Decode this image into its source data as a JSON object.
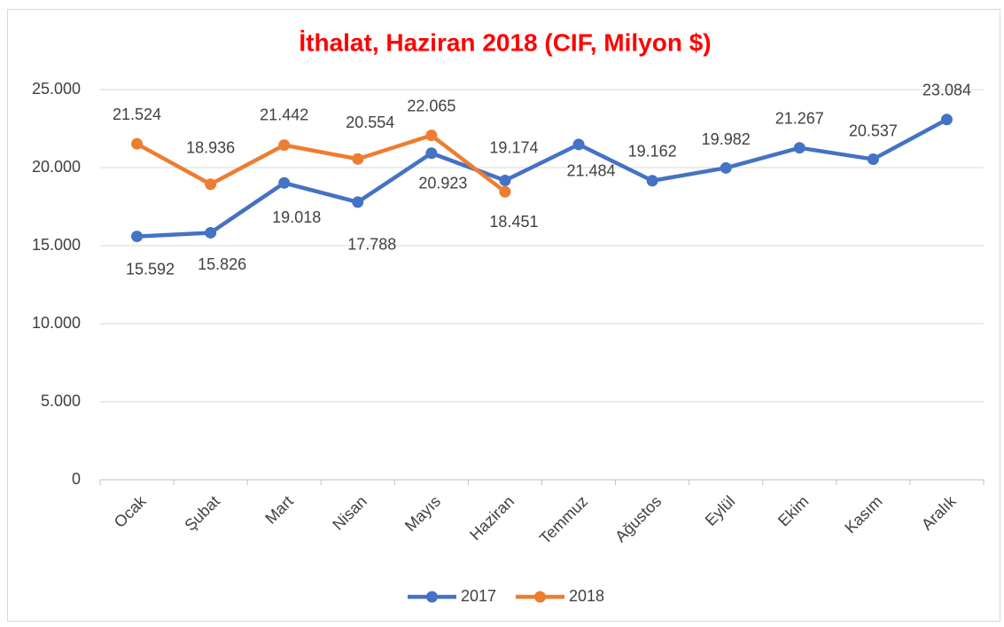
{
  "chart_data": {
    "type": "line",
    "title": "İthalat, Haziran 2018 (CIF, Milyon $)",
    "categories": [
      "Ocak",
      "Şubat",
      "Mart",
      "Nisan",
      "Mayıs",
      "Haziran",
      "Temmuz",
      "Ağustos",
      "Eylül",
      "Ekim",
      "Kasım",
      "Aralık"
    ],
    "series": [
      {
        "name": "2017",
        "color": "#4472c4",
        "values": [
          15592,
          15826,
          19018,
          17788,
          20923,
          19174,
          21484,
          19162,
          19982,
          21267,
          20537,
          23084
        ],
        "value_labels": [
          "15.592",
          "15.826",
          "19.018",
          "17.788",
          "20.923",
          "19.174",
          "21.484",
          "19.162",
          "19.982",
          "21.267",
          "20.537",
          "23.084"
        ]
      },
      {
        "name": "2018",
        "color": "#ed7d31",
        "values": [
          21524,
          18936,
          21442,
          20554,
          22065,
          18451,
          null,
          null,
          null,
          null,
          null,
          null
        ],
        "value_labels": [
          "21.524",
          "18.936",
          "21.442",
          "20.554",
          "22.065",
          "18.451",
          null,
          null,
          null,
          null,
          null,
          null
        ]
      }
    ],
    "ylim": [
      0,
      25000
    ],
    "yticks": [
      0,
      {
        "value": 5000,
        "label": "5.000"
      },
      {
        "value": 10000,
        "label": "10.000"
      },
      {
        "value": 15000,
        "label": "15.000"
      },
      {
        "value": 20000,
        "label": "20.000"
      },
      {
        "value": 25000,
        "label": "25.000"
      }
    ],
    "grid": true,
    "legend": "bottom"
  }
}
